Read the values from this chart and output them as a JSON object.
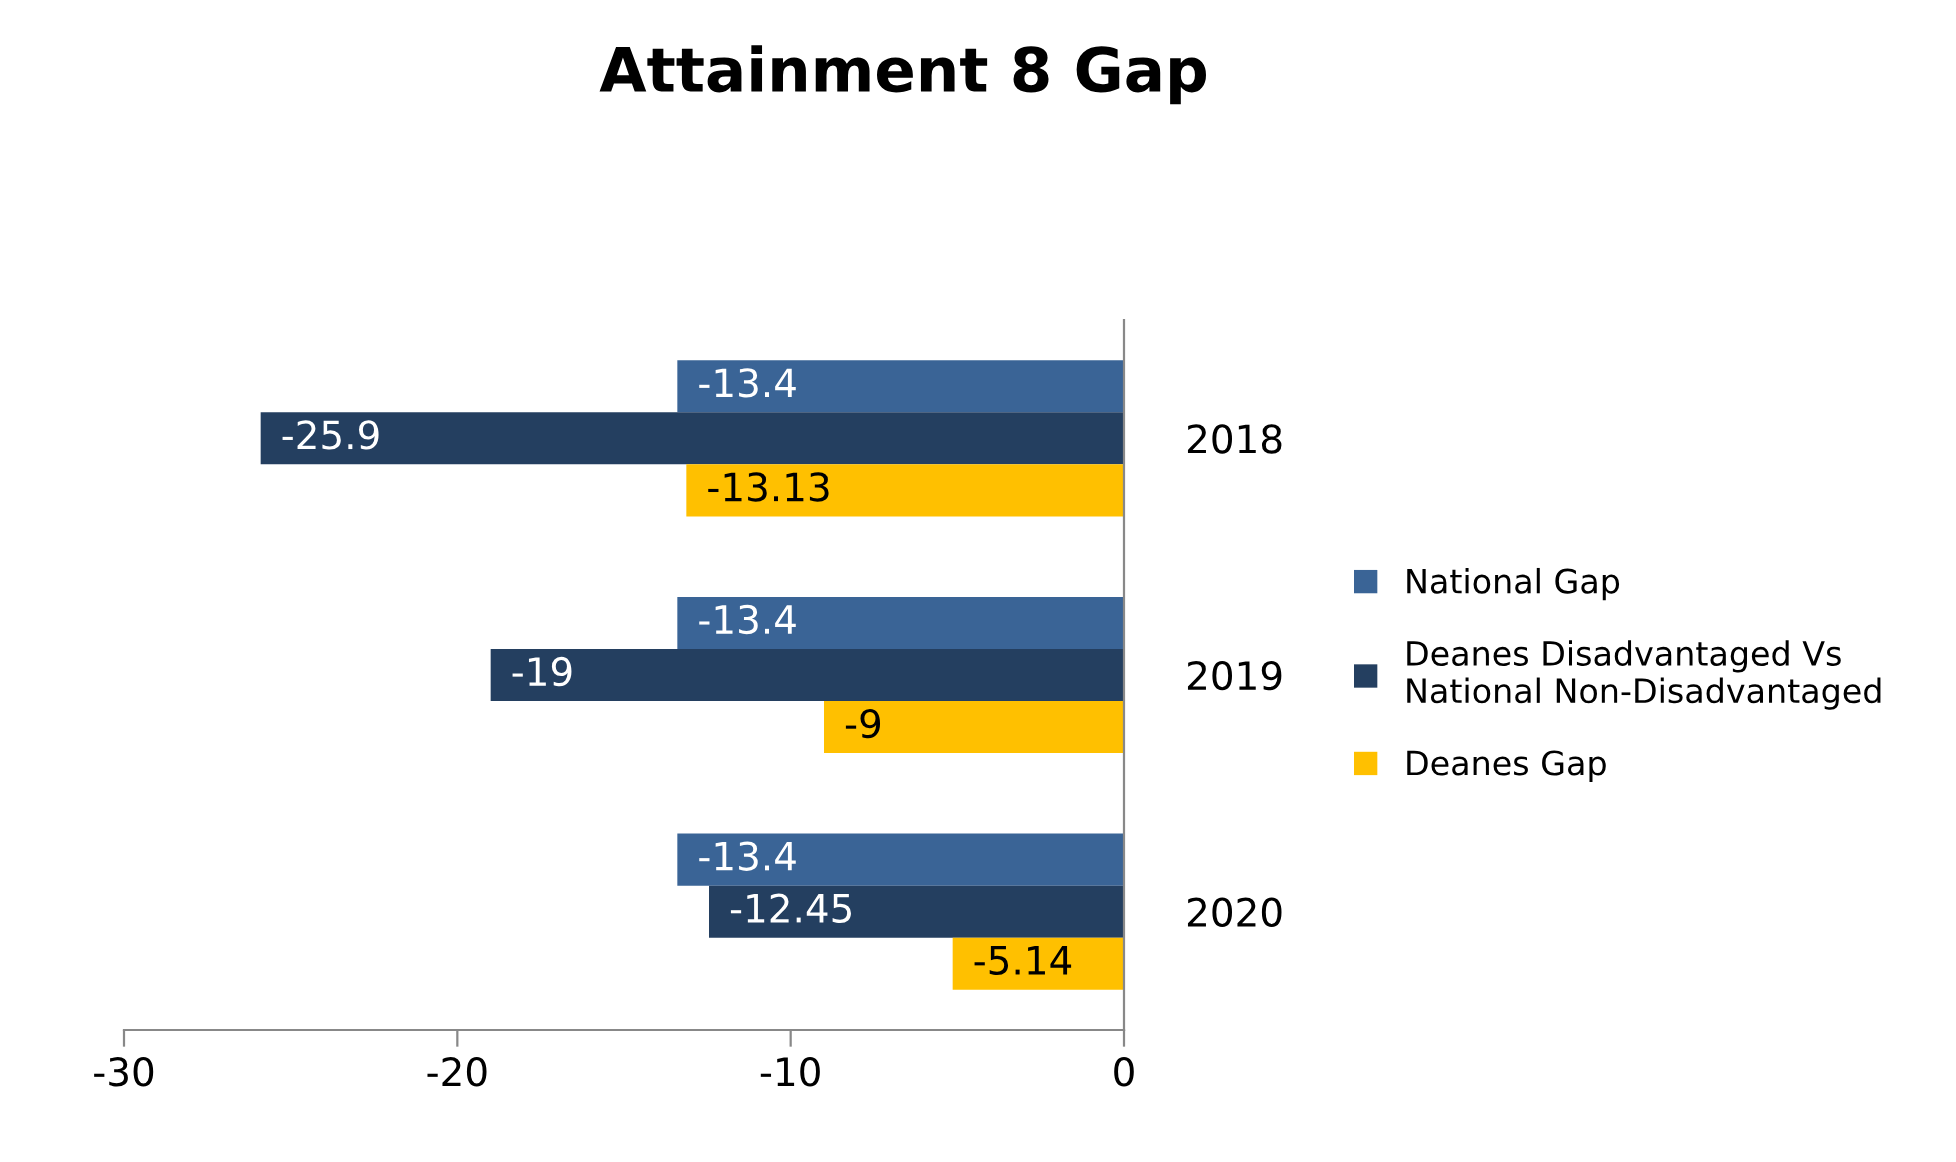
{
  "chart_data": {
    "type": "bar",
    "orientation": "horizontal",
    "title": "Attainment 8 Gap",
    "categories": [
      "2018",
      "2019",
      "2020"
    ],
    "series": [
      {
        "name": "National Gap",
        "color": "#3a6496",
        "values": [
          -13.4,
          -13.4,
          -13.4
        ]
      },
      {
        "name": "Deanes Disadvantaged Vs\nNational Non-Disadvantaged",
        "color": "#243f60",
        "values": [
          -25.9,
          -19,
          -12.45
        ]
      },
      {
        "name": "Deanes Gap",
        "color": "#ffc000",
        "values": [
          -13.13,
          -9,
          -5.14
        ]
      }
    ],
    "xlim": [
      -30,
      0
    ],
    "xticks": [
      -30,
      -20,
      -10,
      0
    ],
    "grid": false,
    "legend": "right",
    "data_labels": true
  }
}
